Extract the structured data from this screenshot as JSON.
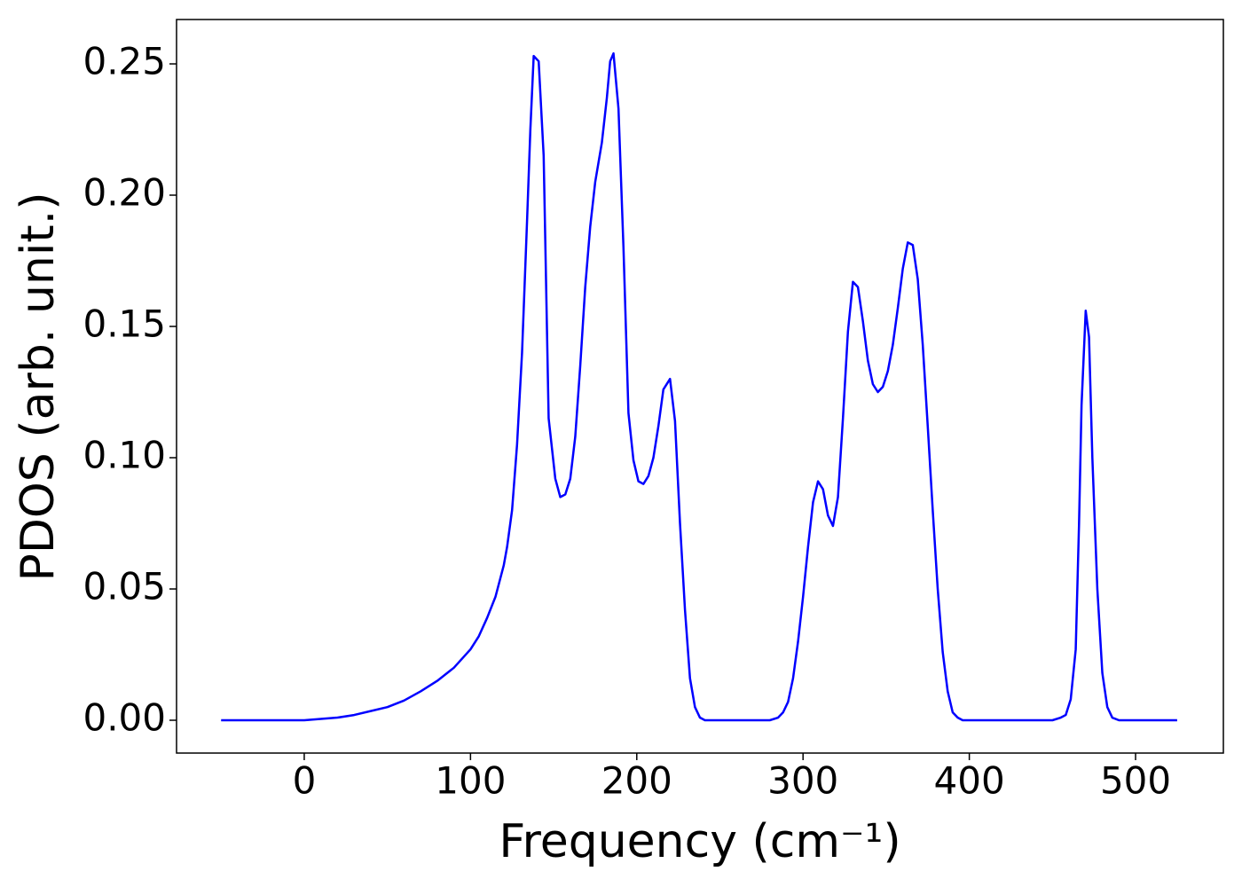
{
  "chart_data": {
    "type": "line",
    "x_label": "Frequency (cm⁻¹)",
    "y_label": "PDOS (arb. unit.)",
    "x": [
      -50,
      0,
      10,
      20,
      30,
      40,
      50,
      60,
      70,
      80,
      90,
      100,
      105,
      110,
      115,
      120,
      122,
      125,
      128,
      131,
      134,
      136,
      138,
      141,
      144,
      147,
      151,
      154,
      157,
      160,
      163,
      166,
      169,
      172,
      175,
      179,
      182,
      184,
      186,
      189,
      192,
      195,
      198,
      201,
      204,
      207,
      210,
      213,
      216,
      220,
      223,
      226,
      229,
      232,
      235,
      238,
      241,
      280,
      285,
      288,
      291,
      294,
      297,
      300,
      303,
      306,
      309,
      312,
      315,
      318,
      321,
      324,
      327,
      330,
      333,
      336,
      339,
      342,
      345,
      348,
      351,
      354,
      357,
      360,
      363,
      366,
      369,
      372,
      375,
      378,
      381,
      384,
      387,
      390,
      393,
      396,
      450,
      455,
      458,
      461,
      464,
      466,
      467.5,
      470,
      472,
      474,
      477,
      480,
      483,
      486,
      490,
      525
    ],
    "series": [
      {
        "color": "#0000ff",
        "values": [
          0,
          0,
          0.0005,
          0.001,
          0.002,
          0.0035,
          0.005,
          0.0075,
          0.011,
          0.015,
          0.02,
          0.027,
          0.032,
          0.039,
          0.047,
          0.059,
          0.066,
          0.08,
          0.105,
          0.14,
          0.19,
          0.225,
          0.253,
          0.251,
          0.215,
          0.115,
          0.092,
          0.085,
          0.086,
          0.092,
          0.108,
          0.135,
          0.165,
          0.188,
          0.205,
          0.22,
          0.237,
          0.251,
          0.254,
          0.233,
          0.18,
          0.117,
          0.099,
          0.091,
          0.09,
          0.093,
          0.1,
          0.112,
          0.126,
          0.13,
          0.114,
          0.075,
          0.042,
          0.016,
          0.005,
          0.001,
          0,
          0,
          0.001,
          0.003,
          0.007,
          0.016,
          0.03,
          0.047,
          0.066,
          0.083,
          0.091,
          0.088,
          0.078,
          0.074,
          0.085,
          0.115,
          0.148,
          0.167,
          0.165,
          0.152,
          0.137,
          0.128,
          0.125,
          0.127,
          0.133,
          0.143,
          0.157,
          0.172,
          0.182,
          0.181,
          0.168,
          0.143,
          0.112,
          0.08,
          0.05,
          0.026,
          0.011,
          0.003,
          0.001,
          0,
          0,
          0.001,
          0.002,
          0.008,
          0.027,
          0.075,
          0.12,
          0.156,
          0.146,
          0.1,
          0.05,
          0.018,
          0.005,
          0.001,
          0,
          0
        ]
      }
    ],
    "xlim": [
      -76.8,
      552.8
    ],
    "ylim": [
      -0.0125,
      0.2669
    ],
    "xticks": [
      0,
      100,
      200,
      300,
      400,
      500
    ],
    "yticks": [
      {
        "value": 0,
        "label": "0.00"
      },
      {
        "value": 0.05,
        "label": "0.05"
      },
      {
        "value": 0.1,
        "label": "0.10"
      },
      {
        "value": 0.15,
        "label": "0.15"
      },
      {
        "value": 0.2,
        "label": "0.20"
      },
      {
        "value": 0.25,
        "label": "0.25"
      }
    ]
  }
}
